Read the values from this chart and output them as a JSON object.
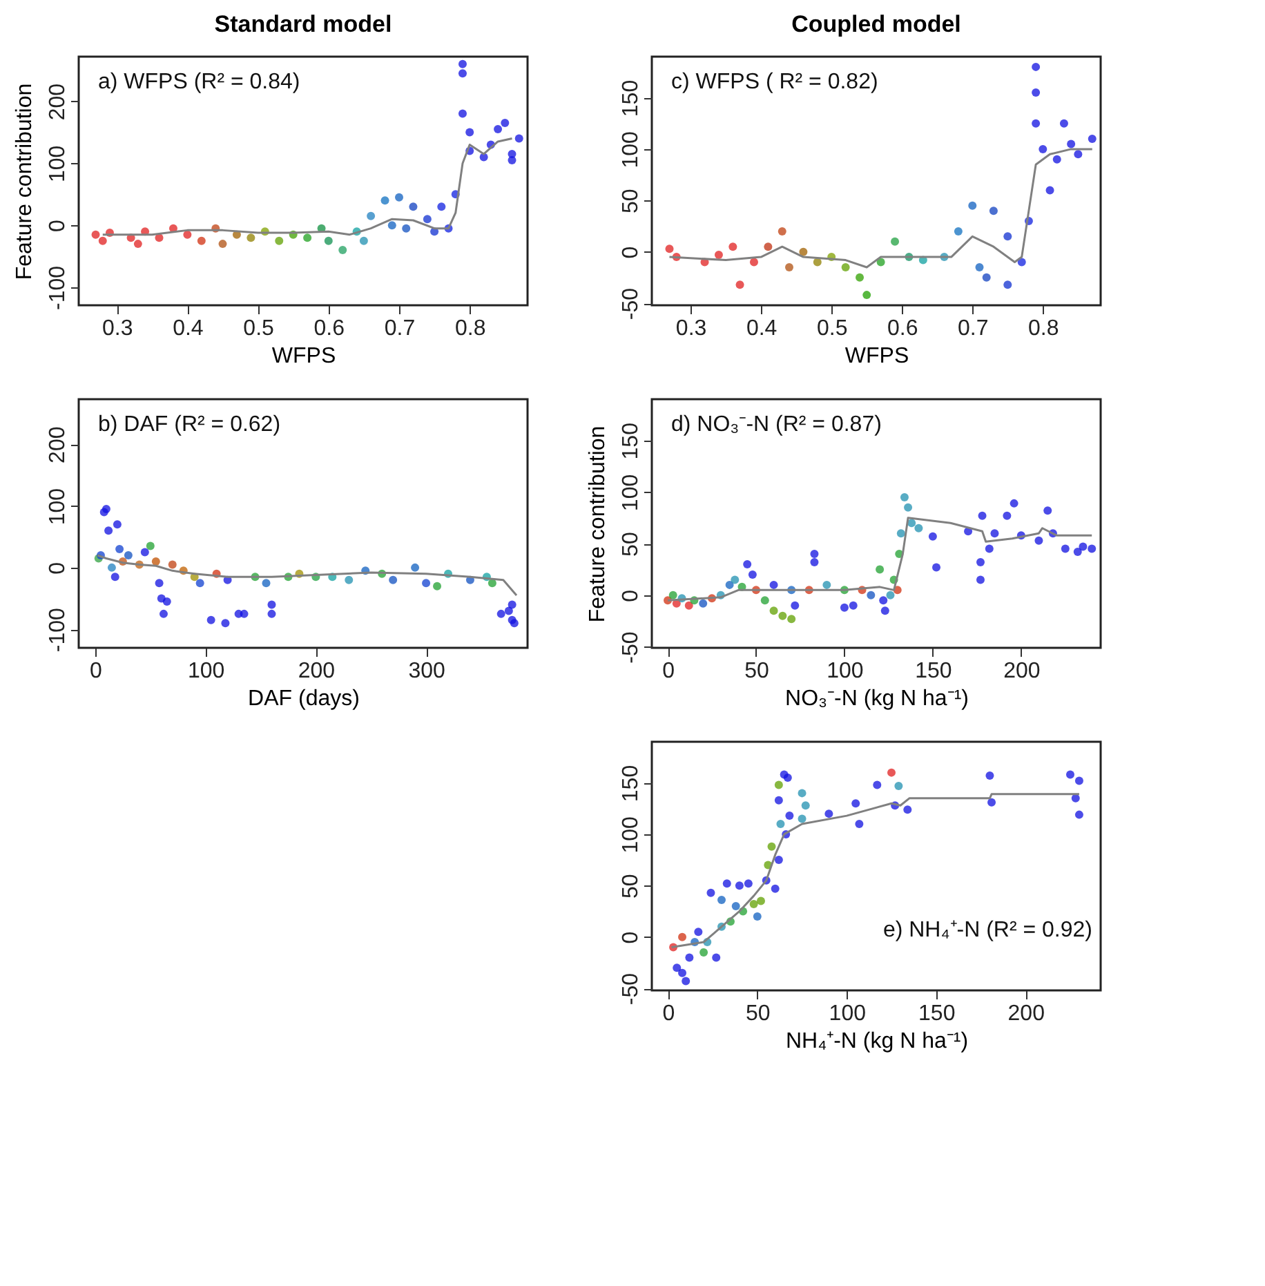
{
  "chart_data": [
    {
      "type": "scatter",
      "title": "Standard model",
      "xlabel": "WFPS",
      "ylabel": "Feature contribution",
      "annotations": [
        "a) WFPS (R² = 0.84)"
      ],
      "xlim": [
        0.246,
        0.882
      ],
      "ylim": [
        -129,
        272
      ],
      "xticks": [
        0.3,
        0.4,
        0.5,
        0.6,
        0.7,
        0.8
      ],
      "yticks": [
        -100,
        0,
        100,
        200
      ],
      "grid": false,
      "series": [
        {
          "marker": "circle",
          "x": [
            0.27,
            0.28,
            0.29,
            0.32,
            0.33,
            0.34,
            0.36,
            0.38,
            0.4,
            0.42,
            0.44,
            0.45,
            0.47,
            0.49,
            0.51,
            0.53,
            0.55,
            0.57,
            0.59,
            0.6,
            0.62,
            0.64,
            0.65,
            0.66,
            0.68,
            0.69,
            0.7,
            0.71,
            0.72,
            0.74,
            0.75,
            0.76,
            0.77,
            0.78,
            0.79,
            0.79,
            0.79,
            0.8,
            0.8,
            0.82,
            0.83,
            0.84,
            0.85,
            0.86,
            0.86,
            0.87
          ],
          "values": [
            -15,
            -25,
            -12,
            -20,
            -30,
            -10,
            -20,
            -5,
            -15,
            -25,
            -5,
            -30,
            -15,
            -20,
            -10,
            -25,
            -15,
            -20,
            -5,
            -25,
            -40,
            -10,
            -25,
            15,
            40,
            0,
            45,
            -5,
            30,
            10,
            -10,
            30,
            -5,
            50,
            260,
            245,
            180,
            150,
            120,
            110,
            130,
            155,
            165,
            115,
            105,
            140
          ],
          "colors": [
            "#e02020",
            "#e02020",
            "#e02020",
            "#e02020",
            "#e02020",
            "#e02020",
            "#e02020",
            "#e02020",
            "#e02020",
            "#d03010",
            "#c04010",
            "#b05010",
            "#a06000",
            "#908000",
            "#80a000",
            "#60a000",
            "#40a000",
            "#20a020",
            "#109040",
            "#109050",
            "#20a060",
            "#10a0a0",
            "#2090b0",
            "#2080c0",
            "#1070c0",
            "#1060c0",
            "#1060c0",
            "#1050c0",
            "#1040c0",
            "#1030d0",
            "#1030d0",
            "#1020e0",
            "#1020e0",
            "#1020e0",
            "#1010e0",
            "#1010e0",
            "#1010e0",
            "#1010e0",
            "#1010e0",
            "#1010e0",
            "#1010e0",
            "#1010e0",
            "#1010e0",
            "#1010e0",
            "#1010e0",
            "#1010e0"
          ]
        },
        {
          "type": "line",
          "marker": "none",
          "line_style": "solid",
          "color": "#808080",
          "x": [
            0.28,
            0.35,
            0.4,
            0.45,
            0.5,
            0.55,
            0.6,
            0.63,
            0.66,
            0.69,
            0.72,
            0.75,
            0.77,
            0.78,
            0.79,
            0.8,
            0.82,
            0.84,
            0.86
          ],
          "values": [
            -15,
            -15,
            -8,
            -8,
            -12,
            -12,
            -10,
            -15,
            -5,
            10,
            8,
            -5,
            -5,
            20,
            100,
            130,
            115,
            135,
            140
          ]
        }
      ]
    },
    {
      "type": "scatter",
      "xlabel": "DAF (days)",
      "annotations": [
        "b) DAF (R² = 0.62)"
      ],
      "xlim": [
        -15,
        392
      ],
      "ylim": [
        -130,
        273
      ],
      "xticks": [
        0,
        100,
        200,
        300
      ],
      "yticks": [
        -100,
        0,
        100,
        200
      ],
      "grid": false,
      "series": [
        {
          "marker": "circle",
          "x": [
            3,
            5,
            8,
            10,
            12,
            15,
            18,
            20,
            22,
            25,
            30,
            40,
            45,
            50,
            55,
            58,
            60,
            62,
            65,
            70,
            80,
            90,
            95,
            105,
            110,
            118,
            120,
            130,
            135,
            145,
            155,
            160,
            160,
            175,
            185,
            200,
            215,
            230,
            245,
            260,
            270,
            290,
            300,
            310,
            320,
            340,
            355,
            360,
            368,
            375,
            378,
            380,
            378
          ],
          "values": [
            15,
            20,
            90,
            95,
            60,
            0,
            -15,
            70,
            30,
            10,
            20,
            5,
            25,
            35,
            10,
            -25,
            -50,
            -75,
            -55,
            5,
            -5,
            -15,
            -25,
            -85,
            -10,
            -90,
            -20,
            -75,
            -75,
            -15,
            -25,
            -60,
            -75,
            -15,
            -10,
            -15,
            -15,
            -20,
            -5,
            -10,
            -20,
            0,
            -25,
            -30,
            -10,
            -20,
            -15,
            -25,
            -75,
            -70,
            -60,
            -90,
            -85
          ],
          "colors": [
            "#30a040",
            "#1040d0",
            "#1010e0",
            "#1010e0",
            "#1010e0",
            "#2080c0",
            "#1010e0",
            "#1010e0",
            "#1040d0",
            "#c05010",
            "#1050c0",
            "#c06010",
            "#1010e0",
            "#20a030",
            "#c05000",
            "#1010e0",
            "#1010e0",
            "#1010e0",
            "#1010e0",
            "#c04010",
            "#c06000",
            "#a09000",
            "#1040d0",
            "#1010e0",
            "#d03010",
            "#1010e0",
            "#1010e0",
            "#1010e0",
            "#1010e0",
            "#20a030",
            "#1060c0",
            "#1010e0",
            "#1010e0",
            "#20a030",
            "#a09000",
            "#20a040",
            "#10a0a0",
            "#2090b0",
            "#1060c0",
            "#20a030",
            "#1050c0",
            "#1060c0",
            "#1040d0",
            "#20a030",
            "#10a0a0",
            "#1050c0",
            "#10a0a0",
            "#20a030",
            "#1010e0",
            "#1010e0",
            "#1010e0",
            "#1010e0",
            "#1010e0"
          ]
        },
        {
          "type": "line",
          "marker": "none",
          "line_style": "solid",
          "color": "#808080",
          "x": [
            2,
            10,
            25,
            40,
            55,
            70,
            90,
            120,
            160,
            200,
            250,
            300,
            340,
            370,
            382
          ],
          "values": [
            20,
            15,
            8,
            5,
            3,
            -5,
            -10,
            -15,
            -15,
            -12,
            -8,
            -10,
            -15,
            -20,
            -45
          ]
        }
      ]
    },
    {
      "type": "scatter",
      "title": "Coupled model",
      "xlabel": "WFPS",
      "annotations": [
        "c) WFPS ( R² = 0.82)"
      ],
      "xlim": [
        0.245,
        0.882
      ],
      "ylim": [
        -52,
        190
      ],
      "xticks": [
        0.3,
        0.4,
        0.5,
        0.6,
        0.7,
        0.8
      ],
      "yticks": [
        -50,
        0,
        50,
        100,
        150
      ],
      "grid": false,
      "series": [
        {
          "marker": "circle",
          "x": [
            0.27,
            0.28,
            0.32,
            0.34,
            0.36,
            0.37,
            0.39,
            0.41,
            0.43,
            0.44,
            0.46,
            0.48,
            0.5,
            0.52,
            0.54,
            0.55,
            0.57,
            0.59,
            0.61,
            0.63,
            0.66,
            0.68,
            0.7,
            0.71,
            0.72,
            0.73,
            0.75,
            0.75,
            0.77,
            0.78,
            0.79,
            0.79,
            0.79,
            0.8,
            0.81,
            0.82,
            0.83,
            0.84,
            0.85,
            0.87
          ],
          "values": [
            3,
            -5,
            -10,
            -3,
            5,
            -32,
            -10,
            5,
            20,
            -15,
            0,
            -10,
            -5,
            -15,
            -25,
            -42,
            -10,
            10,
            -5,
            -8,
            -5,
            20,
            45,
            -15,
            -25,
            40,
            -32,
            15,
            -10,
            30,
            180,
            155,
            125,
            100,
            60,
            90,
            125,
            105,
            95,
            110
          ],
          "colors": [
            "#e02020",
            "#e02020",
            "#e02020",
            "#e02020",
            "#e02020",
            "#e02020",
            "#e02020",
            "#c03010",
            "#c04010",
            "#b05010",
            "#a06000",
            "#908000",
            "#80a000",
            "#60a000",
            "#30a000",
            "#20a000",
            "#20a020",
            "#20a040",
            "#109060",
            "#10a0a0",
            "#2090b0",
            "#1070c0",
            "#1060c0",
            "#1060c0",
            "#1040c0",
            "#1040c0",
            "#1030d0",
            "#1030d0",
            "#1020e0",
            "#1020e0",
            "#1010e0",
            "#1010e0",
            "#1010e0",
            "#1010e0",
            "#1010e0",
            "#1010e0",
            "#1010e0",
            "#1010e0",
            "#1010e0",
            "#1010e0"
          ]
        },
        {
          "type": "line",
          "marker": "none",
          "line_style": "solid",
          "color": "#808080",
          "x": [
            0.27,
            0.35,
            0.4,
            0.43,
            0.46,
            0.52,
            0.55,
            0.57,
            0.62,
            0.67,
            0.7,
            0.73,
            0.76,
            0.77,
            0.78,
            0.79,
            0.81,
            0.84,
            0.87
          ],
          "values": [
            -5,
            -8,
            -5,
            5,
            -5,
            -8,
            -15,
            -5,
            -5,
            -5,
            15,
            5,
            -10,
            -5,
            40,
            85,
            95,
            100,
            100
          ]
        }
      ]
    },
    {
      "type": "scatter",
      "xlabel": "NO₃⁻-N (kg N ha⁻¹)",
      "ylabel": "Feature contribution",
      "annotations": [
        "d) NO₃⁻-N (R² = 0.87)"
      ],
      "xlim": [
        -9,
        245
      ],
      "ylim": [
        -51,
        190
      ],
      "xticks": [
        0,
        50,
        100,
        150,
        200
      ],
      "yticks": [
        -50,
        0,
        50,
        100,
        150
      ],
      "grid": false,
      "series": [
        {
          "marker": "circle",
          "x": [
            0,
            3,
            5,
            8,
            12,
            15,
            20,
            25,
            30,
            35,
            38,
            42,
            45,
            48,
            50,
            55,
            60,
            65,
            70,
            60,
            70,
            72,
            80,
            83,
            83,
            90,
            100,
            100,
            105,
            110,
            115,
            120,
            122,
            123,
            126,
            128,
            130,
            131,
            132,
            134,
            136,
            138,
            142,
            150,
            152,
            170,
            177,
            177,
            178,
            182,
            185,
            192,
            196,
            200,
            210,
            215,
            218,
            225,
            232,
            235,
            240
          ],
          "values": [
            -5,
            0,
            -8,
            -3,
            -10,
            -5,
            -8,
            -3,
            0,
            10,
            15,
            8,
            30,
            20,
            5,
            -5,
            -15,
            -20,
            -23,
            10,
            5,
            -10,
            5,
            40,
            32,
            10,
            5,
            -12,
            -10,
            5,
            0,
            25,
            -5,
            -15,
            0,
            15,
            5,
            40,
            60,
            95,
            85,
            70,
            65,
            57,
            27,
            62,
            32,
            15,
            77,
            45,
            60,
            77,
            89,
            58,
            53,
            82,
            60,
            45,
            42,
            47,
            45
          ],
          "colors": [
            "#d03010",
            "#20a030",
            "#e02020",
            "#2090b0",
            "#e02020",
            "#20a030",
            "#1050c0",
            "#d03010",
            "#2090b0",
            "#1060c0",
            "#2090b0",
            "#20a030",
            "#1010e0",
            "#1010e0",
            "#d03010",
            "#20a030",
            "#60a000",
            "#60a000",
            "#60a000",
            "#1010e0",
            "#1060c0",
            "#1010e0",
            "#d03010",
            "#1010e0",
            "#1010e0",
            "#2090b0",
            "#20a030",
            "#1010e0",
            "#1010e0",
            "#d03010",
            "#1050c0",
            "#20a030",
            "#1010e0",
            "#1010e0",
            "#2090b0",
            "#20a030",
            "#d03010",
            "#20a030",
            "#2090b0",
            "#2090b0",
            "#2090b0",
            "#2090b0",
            "#2090b0",
            "#1010e0",
            "#1010e0",
            "#1010e0",
            "#1010e0",
            "#1010e0",
            "#1010e0",
            "#1010e0",
            "#1010e0",
            "#1010e0",
            "#1010e0",
            "#1010e0",
            "#1010e0",
            "#1010e0",
            "#1010e0",
            "#1010e0",
            "#1010e0",
            "#1010e0",
            "#1010e0"
          ]
        },
        {
          "type": "line",
          "marker": "none",
          "line_style": "solid",
          "color": "#808080",
          "x": [
            0,
            30,
            40,
            60,
            100,
            120,
            128,
            133,
            136,
            160,
            178,
            180,
            195,
            210,
            212,
            220,
            240
          ],
          "values": [
            -5,
            -2,
            5,
            5,
            5,
            8,
            5,
            40,
            75,
            70,
            62,
            52,
            55,
            60,
            65,
            58,
            58
          ]
        }
      ]
    },
    {
      "type": "scatter",
      "xlabel": "NH₄⁺-N (kg N ha⁻¹)",
      "annotations": [
        "e) NH₄⁺-N (R² = 0.92)"
      ],
      "xlim": [
        -9,
        242
      ],
      "ylim": [
        -52,
        190
      ],
      "xticks": [
        0,
        50,
        100,
        150,
        200
      ],
      "yticks": [
        -50,
        0,
        50,
        100,
        150
      ],
      "grid": false,
      "series": [
        {
          "marker": "circle",
          "x": [
            3,
            5,
            8,
            10,
            12,
            8,
            15,
            17,
            20,
            22,
            24,
            27,
            30,
            30,
            33,
            35,
            38,
            40,
            42,
            45,
            48,
            50,
            52,
            55,
            56,
            58,
            60,
            62,
            62,
            62,
            63,
            65,
            66,
            67,
            68,
            75,
            75,
            77,
            90,
            105,
            107,
            117,
            125,
            127,
            129,
            134,
            180,
            181,
            225,
            228,
            230,
            230
          ],
          "values": [
            -10,
            -30,
            -35,
            -43,
            -20,
            0,
            -5,
            5,
            -15,
            -5,
            43,
            -20,
            36,
            10,
            52,
            15,
            30,
            50,
            25,
            52,
            32,
            20,
            35,
            55,
            70,
            88,
            47,
            75,
            148,
            133,
            110,
            158,
            100,
            155,
            118,
            115,
            140,
            128,
            120,
            130,
            110,
            148,
            160,
            128,
            147,
            124,
            157,
            131,
            158,
            135,
            119,
            152
          ],
          "colors": [
            "#e02020",
            "#1010e0",
            "#1010e0",
            "#1010e0",
            "#1010e0",
            "#d03010",
            "#1060c0",
            "#1010e0",
            "#20a030",
            "#2090b0",
            "#1010e0",
            "#1010e0",
            "#1060c0",
            "#2090b0",
            "#1010e0",
            "#20a030",
            "#1060c0",
            "#1010e0",
            "#20a030",
            "#1010e0",
            "#60a000",
            "#1060c0",
            "#60a000",
            "#1010e0",
            "#60a000",
            "#60a000",
            "#1010e0",
            "#1010e0",
            "#60a000",
            "#1010e0",
            "#2090b0",
            "#1010e0",
            "#1010e0",
            "#1010e0",
            "#1010e0",
            "#2090b0",
            "#2090b0",
            "#2090b0",
            "#1010e0",
            "#1010e0",
            "#1010e0",
            "#1010e0",
            "#e02020",
            "#1010e0",
            "#2090b0",
            "#1010e0",
            "#1010e0",
            "#1010e0",
            "#1010e0",
            "#1010e0",
            "#1010e0",
            "#1010e0"
          ]
        },
        {
          "type": "line",
          "marker": "none",
          "line_style": "solid",
          "color": "#808080",
          "x": [
            2,
            20,
            40,
            48,
            55,
            60,
            65,
            75,
            100,
            125,
            130,
            135,
            180,
            181,
            230
          ],
          "values": [
            -10,
            -5,
            25,
            40,
            55,
            80,
            100,
            110,
            118,
            130,
            128,
            135,
            135,
            139,
            139
          ]
        }
      ]
    }
  ]
}
